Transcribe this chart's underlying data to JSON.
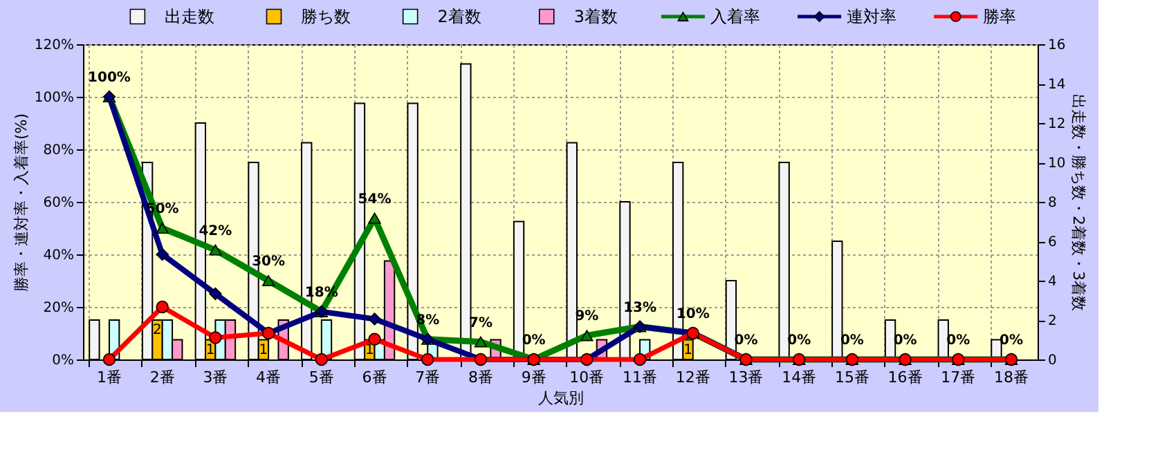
{
  "chart_data": {
    "type": "bar",
    "xlabel": "人気別",
    "ylabel": "勝率・連対率・入着率(%)",
    "y2label": "出走数・勝ち数・2着数・3着数",
    "categories": [
      "1番",
      "2番",
      "3番",
      "4番",
      "5番",
      "6番",
      "7番",
      "8番",
      "9番",
      "10番",
      "11番",
      "12番",
      "13番",
      "14番",
      "15番",
      "16番",
      "17番",
      "18番"
    ],
    "series": [
      {
        "name": "出走数",
        "axis": "y2",
        "color": "#f4f4f4",
        "values": [
          2,
          10,
          12,
          10,
          11,
          13,
          13,
          15,
          7,
          11,
          8,
          10,
          4,
          10,
          6,
          2,
          2,
          1
        ]
      },
      {
        "name": "勝ち数",
        "axis": "y2",
        "color": "#ffc000",
        "values": [
          0,
          2,
          1,
          1,
          0,
          1,
          0,
          0,
          0,
          0,
          0,
          1,
          0,
          0,
          0,
          0,
          0,
          0
        ],
        "value_labels": [
          null,
          "2",
          "1",
          "1",
          null,
          "1",
          null,
          null,
          null,
          null,
          null,
          "1",
          null,
          null,
          null,
          null,
          null,
          null
        ]
      },
      {
        "name": "2着数",
        "axis": "y2",
        "color": "#ccffff",
        "values": [
          2,
          2,
          2,
          0,
          2,
          1,
          1,
          0,
          0,
          0,
          1,
          0,
          0,
          0,
          0,
          0,
          0,
          0
        ]
      },
      {
        "name": "3着数",
        "axis": "y2",
        "color": "#ff99cc",
        "values": [
          0,
          1,
          2,
          2,
          0,
          5,
          0,
          1,
          0,
          1,
          0,
          0,
          0,
          0,
          0,
          0,
          0,
          0
        ]
      },
      {
        "name": "入着率",
        "type": "line",
        "marker": "triangle",
        "color": "#008000",
        "values": [
          100,
          50,
          41.7,
          30,
          18.2,
          53.8,
          7.7,
          6.7,
          0,
          9.1,
          12.5,
          10,
          0,
          0,
          0,
          0,
          0,
          0
        ],
        "value_labels": [
          "100%",
          "50%",
          "42%",
          "30%",
          "18%",
          "54%",
          "8%",
          "7%",
          "0%",
          "9%",
          "13%",
          "10%",
          "0%",
          "0%",
          "0%",
          "0%",
          "0%",
          "0%"
        ]
      },
      {
        "name": "連対率",
        "type": "line",
        "marker": "diamond",
        "color": "#000080",
        "values": [
          100,
          40,
          25,
          10,
          18.2,
          15.4,
          7.7,
          0,
          0,
          0,
          12.5,
          10,
          0,
          0,
          0,
          0,
          0,
          0
        ]
      },
      {
        "name": "勝率",
        "type": "line",
        "marker": "circle",
        "color": "#ff0000",
        "values": [
          0,
          20,
          8.3,
          10,
          0,
          7.7,
          0,
          0,
          0,
          0,
          0,
          10,
          0,
          0,
          0,
          0,
          0,
          0
        ]
      }
    ],
    "ylim": [
      0,
      120
    ],
    "yticks": [
      {
        "value": 0,
        "label": "0%"
      },
      {
        "value": 20,
        "label": "20%"
      },
      {
        "value": 40,
        "label": "40%"
      },
      {
        "value": 60,
        "label": "60%"
      },
      {
        "value": 80,
        "label": "80%"
      },
      {
        "value": 100,
        "label": "100%"
      },
      {
        "value": 120,
        "label": "120%"
      }
    ],
    "y2lim": [
      0,
      16
    ],
    "y2ticks": [
      0,
      2,
      4,
      6,
      8,
      10,
      12,
      14,
      16
    ],
    "grid": true,
    "legend": "top",
    "line_style": "solid"
  }
}
